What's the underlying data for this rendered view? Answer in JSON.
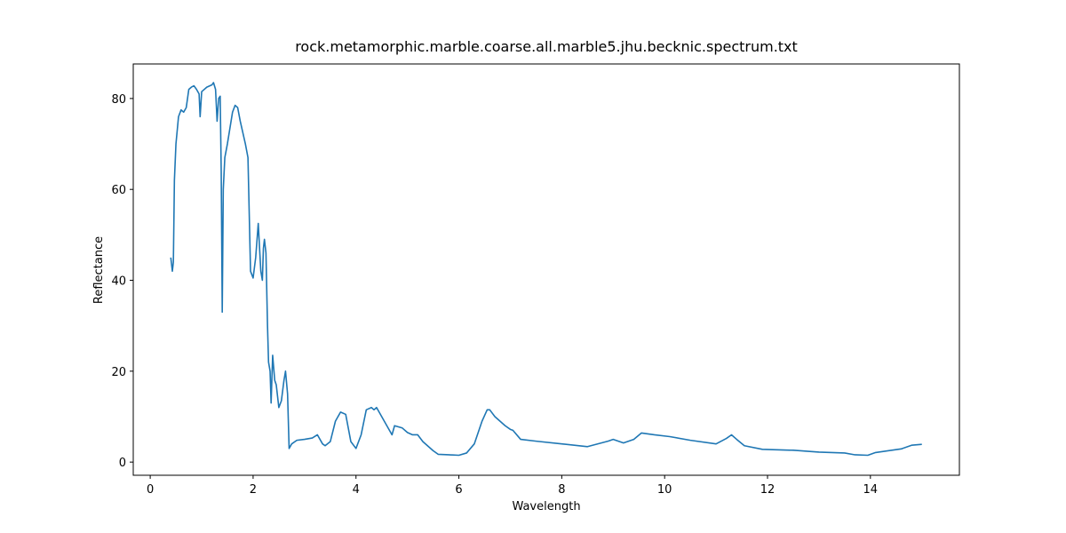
{
  "chart_data": {
    "type": "line",
    "title": "rock.metamorphic.marble.coarse.all.marble5.jhu.becknic.spectrum.txt",
    "x_label": "Wavelength",
    "y_label": "Reflectance",
    "color": "#1f77b4",
    "x": [
      0.4,
      0.43,
      0.45,
      0.47,
      0.5,
      0.55,
      0.6,
      0.65,
      0.7,
      0.75,
      0.8,
      0.85,
      0.9,
      0.95,
      0.97,
      1.0,
      1.1,
      1.2,
      1.23,
      1.27,
      1.3,
      1.33,
      1.36,
      1.38,
      1.4,
      1.42,
      1.45,
      1.5,
      1.6,
      1.65,
      1.7,
      1.75,
      1.85,
      1.9,
      1.95,
      2.0,
      2.05,
      2.1,
      2.15,
      2.18,
      2.2,
      2.22,
      2.25,
      2.28,
      2.3,
      2.33,
      2.35,
      2.38,
      2.42,
      2.45,
      2.5,
      2.55,
      2.6,
      2.63,
      2.67,
      2.7,
      2.75,
      2.85,
      3.0,
      3.15,
      3.25,
      3.35,
      3.4,
      3.5,
      3.6,
      3.7,
      3.8,
      3.9,
      4.0,
      4.1,
      4.2,
      4.3,
      4.35,
      4.4,
      4.5,
      4.6,
      4.7,
      4.75,
      4.9,
      5.0,
      5.1,
      5.2,
      5.3,
      5.5,
      5.6,
      5.8,
      6.0,
      6.15,
      6.3,
      6.45,
      6.55,
      6.6,
      6.7,
      6.9,
      7.0,
      7.05,
      7.2,
      7.5,
      8.0,
      8.5,
      8.9,
      9.0,
      9.2,
      9.4,
      9.55,
      9.8,
      10.1,
      10.5,
      11.0,
      11.2,
      11.3,
      11.4,
      11.55,
      11.9,
      12.5,
      13.0,
      13.5,
      13.7,
      13.95,
      14.1,
      14.6,
      14.8,
      15.0
    ],
    "values": [
      45,
      42,
      44,
      62,
      70,
      76,
      77.5,
      77,
      78,
      82,
      82.5,
      82.8,
      82,
      81,
      76,
      81.5,
      82.5,
      83,
      83.5,
      82,
      75,
      80,
      80.5,
      64,
      33,
      60,
      67,
      70,
      77,
      78.5,
      78,
      75,
      70,
      67,
      42,
      40.5,
      45,
      52.5,
      42,
      40,
      47,
      49,
      46,
      30,
      22,
      20,
      13,
      23.5,
      18,
      17,
      12,
      13.5,
      18,
      20,
      15,
      3,
      4,
      4.8,
      5,
      5.3,
      6,
      4,
      3.6,
      4.5,
      9,
      11,
      10.5,
      4.5,
      3,
      6,
      11.5,
      12,
      11.5,
      12,
      10,
      8,
      6,
      8,
      7.5,
      6.5,
      6,
      6,
      4.5,
      2.5,
      1.7,
      1.6,
      1.5,
      2,
      4,
      9,
      11.5,
      11.5,
      10,
      8,
      7.2,
      7,
      5,
      4.6,
      4,
      3.4,
      4.6,
      5,
      4.2,
      5,
      6.4,
      6,
      5.6,
      4.8,
      4,
      5.2,
      6,
      5,
      3.6,
      2.8,
      2.6,
      2.2,
      2,
      1.6,
      1.5,
      2.1,
      2.9,
      3.7,
      3.9
    ],
    "xlim": [
      -0.33,
      15.73
    ],
    "ylim": [
      -2.9,
      87.6
    ],
    "xticks": [
      0,
      2,
      4,
      6,
      8,
      10,
      12,
      14
    ],
    "yticks": [
      0,
      20,
      40,
      60,
      80
    ]
  }
}
